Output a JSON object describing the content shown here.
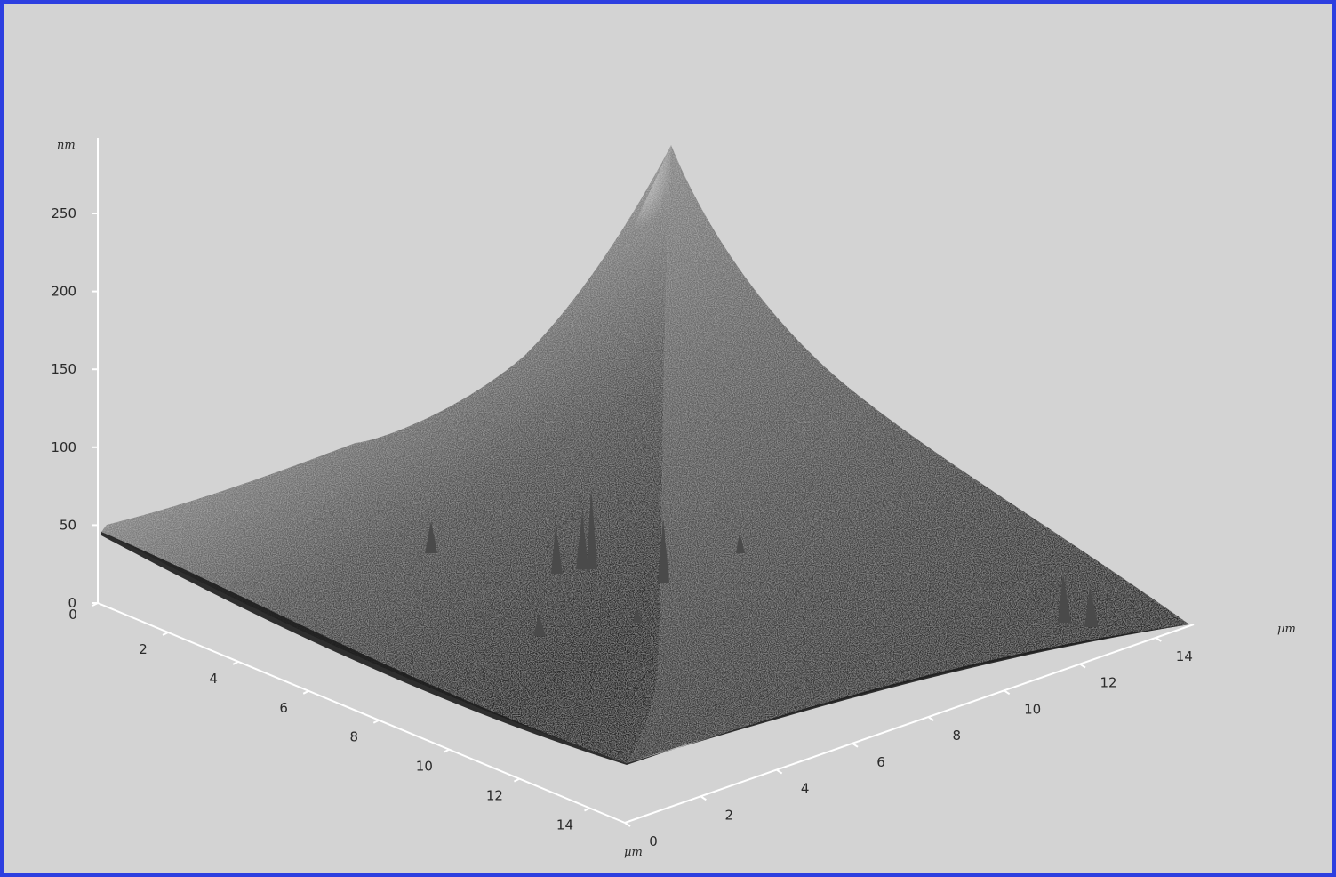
{
  "image": {
    "type": "afm-3d-surface",
    "surface": "pyramidal tip peak",
    "colormap": "grayscale",
    "background_color": "#d3d3d3",
    "border_color": "#2d3fe0",
    "axis_color": "#ffffff"
  },
  "z_axis": {
    "unit": "nm",
    "range": [
      0,
      290
    ],
    "ticks": [
      "0",
      "50",
      "100",
      "150",
      "200",
      "250"
    ]
  },
  "left_axis": {
    "unit": "µm",
    "range": [
      0,
      15
    ],
    "ticks": [
      "0",
      "2",
      "4",
      "6",
      "8",
      "10",
      "12",
      "14"
    ]
  },
  "right_axis": {
    "unit": "µm",
    "range": [
      0,
      15
    ],
    "ticks": [
      "0",
      "2",
      "4",
      "6",
      "8",
      "10",
      "12",
      "14"
    ]
  }
}
